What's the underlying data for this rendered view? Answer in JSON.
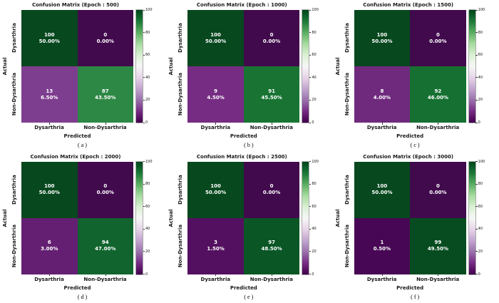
{
  "figure": {
    "background": "#ffffff",
    "colormap": "PRGn",
    "axis": {
      "xlabel": "Predicted",
      "ylabel": "Actual",
      "x_categories": [
        "Dysarthria",
        "Non-Dysarthria"
      ],
      "y_categories": [
        "Dysarthria",
        "Non-Dysarthria"
      ]
    },
    "colorbar": {
      "min": 0,
      "max": 100,
      "ticks": [
        "100",
        "80",
        "60",
        "40",
        "20",
        "0"
      ],
      "color_top": "#00441b",
      "color_mid": "#f7f7f7",
      "color_bottom": "#40004b"
    }
  },
  "subplots": [
    {
      "title": "Confusion Matrix (Epoch : 500)",
      "letter": "(a)",
      "cells": [
        {
          "count": "100",
          "pct": "50.00%",
          "color": "#07481e"
        },
        {
          "count": "0",
          "pct": "0.00%",
          "color": "#400a4c"
        },
        {
          "count": "13",
          "pct": "6.50%",
          "color": "#7e3e8f"
        },
        {
          "count": "87",
          "pct": "43.50%",
          "color": "#2e8845"
        }
      ]
    },
    {
      "title": "Confusion Matrix (Epoch : 1000)",
      "letter": "(b)",
      "cells": [
        {
          "count": "100",
          "pct": "50.00%",
          "color": "#07481e"
        },
        {
          "count": "0",
          "pct": "0.00%",
          "color": "#400a4c"
        },
        {
          "count": "9",
          "pct": "4.50%",
          "color": "#752c82"
        },
        {
          "count": "91",
          "pct": "45.50%",
          "color": "#197434"
        }
      ]
    },
    {
      "title": "Confusion Matrix (Epoch : 1500)",
      "letter": "(c)",
      "cells": [
        {
          "count": "100",
          "pct": "50.00%",
          "color": "#07481e"
        },
        {
          "count": "0",
          "pct": "0.00%",
          "color": "#400a4c"
        },
        {
          "count": "8",
          "pct": "4.00%",
          "color": "#6f2a7e"
        },
        {
          "count": "92",
          "pct": "46.00%",
          "color": "#167031"
        }
      ]
    },
    {
      "title": "Confusion Matrix (Epoch : 2000)",
      "letter": "(d)",
      "cells": [
        {
          "count": "100",
          "pct": "50.00%",
          "color": "#07481e"
        },
        {
          "count": "0",
          "pct": "0.00%",
          "color": "#400a4c"
        },
        {
          "count": "6",
          "pct": "3.00%",
          "color": "#641f72"
        },
        {
          "count": "94",
          "pct": "47.00%",
          "color": "#11642d"
        }
      ]
    },
    {
      "title": "Confusion Matrix (Epoch : 2500)",
      "letter": "(e)",
      "cells": [
        {
          "count": "100",
          "pct": "50.00%",
          "color": "#07481e"
        },
        {
          "count": "0",
          "pct": "0.00%",
          "color": "#400a4c"
        },
        {
          "count": "3",
          "pct": "1.50%",
          "color": "#541060"
        },
        {
          "count": "97",
          "pct": "48.50%",
          "color": "#0a5625"
        }
      ]
    },
    {
      "title": "Confusion Matrix (Epoch : 3000)",
      "letter": "(f)",
      "cells": [
        {
          "count": "100",
          "pct": "50.00%",
          "color": "#07481e"
        },
        {
          "count": "0",
          "pct": "0.00%",
          "color": "#400a4c"
        },
        {
          "count": "1",
          "pct": "0.50%",
          "color": "#470754"
        },
        {
          "count": "99",
          "pct": "49.50%",
          "color": "#064c20"
        }
      ]
    }
  ],
  "chart_data": [
    {
      "type": "heatmap",
      "title": "Confusion Matrix (Epoch : 500)",
      "panel": "(a)",
      "xlabel": "Predicted",
      "ylabel": "Actual",
      "x_categories": [
        "Dysarthria",
        "Non-Dysarthria"
      ],
      "y_categories": [
        "Dysarthria",
        "Non-Dysarthria"
      ],
      "values": [
        [
          100,
          0
        ],
        [
          13,
          87
        ]
      ],
      "percent_labels": [
        [
          "50.00%",
          "0.00%"
        ],
        [
          "6.50%",
          "43.50%"
        ]
      ],
      "colormap": "PRGn",
      "colorbar_range": [
        0,
        100
      ],
      "colorbar_ticks": [
        0,
        20,
        40,
        60,
        80,
        100
      ]
    },
    {
      "type": "heatmap",
      "title": "Confusion Matrix (Epoch : 1000)",
      "panel": "(b)",
      "xlabel": "Predicted",
      "ylabel": "Actual",
      "x_categories": [
        "Dysarthria",
        "Non-Dysarthria"
      ],
      "y_categories": [
        "Dysarthria",
        "Non-Dysarthria"
      ],
      "values": [
        [
          100,
          0
        ],
        [
          9,
          91
        ]
      ],
      "percent_labels": [
        [
          "50.00%",
          "0.00%"
        ],
        [
          "4.50%",
          "45.50%"
        ]
      ],
      "colormap": "PRGn",
      "colorbar_range": [
        0,
        100
      ],
      "colorbar_ticks": [
        0,
        20,
        40,
        60,
        80,
        100
      ]
    },
    {
      "type": "heatmap",
      "title": "Confusion Matrix (Epoch : 1500)",
      "panel": "(c)",
      "xlabel": "Predicted",
      "ylabel": "Actual",
      "x_categories": [
        "Dysarthria",
        "Non-Dysarthria"
      ],
      "y_categories": [
        "Dysarthria",
        "Non-Dysarthria"
      ],
      "values": [
        [
          100,
          0
        ],
        [
          8,
          92
        ]
      ],
      "percent_labels": [
        [
          "50.00%",
          "0.00%"
        ],
        [
          "4.00%",
          "46.00%"
        ]
      ],
      "colormap": "PRGn",
      "colorbar_range": [
        0,
        100
      ],
      "colorbar_ticks": [
        0,
        20,
        40,
        60,
        80,
        100
      ]
    },
    {
      "type": "heatmap",
      "title": "Confusion Matrix (Epoch : 2000)",
      "panel": "(d)",
      "xlabel": "Predicted",
      "ylabel": "Actual",
      "x_categories": [
        "Dysarthria",
        "Non-Dysarthria"
      ],
      "y_categories": [
        "Dysarthria",
        "Non-Dysarthria"
      ],
      "values": [
        [
          100,
          0
        ],
        [
          6,
          94
        ]
      ],
      "percent_labels": [
        [
          "50.00%",
          "0.00%"
        ],
        [
          "3.00%",
          "47.00%"
        ]
      ],
      "colormap": "PRGn",
      "colorbar_range": [
        0,
        100
      ],
      "colorbar_ticks": [
        0,
        20,
        40,
        60,
        80,
        100
      ]
    },
    {
      "type": "heatmap",
      "title": "Confusion Matrix (Epoch : 2500)",
      "panel": "(e)",
      "xlabel": "Predicted",
      "ylabel": "Actual",
      "x_categories": [
        "Dysarthria",
        "Non-Dysarthria"
      ],
      "y_categories": [
        "Dysarthria",
        "Non-Dysarthria"
      ],
      "values": [
        [
          100,
          0
        ],
        [
          3,
          97
        ]
      ],
      "percent_labels": [
        [
          "50.00%",
          "0.00%"
        ],
        [
          "1.50%",
          "48.50%"
        ]
      ],
      "colormap": "PRGn",
      "colorbar_range": [
        0,
        100
      ],
      "colorbar_ticks": [
        0,
        20,
        40,
        60,
        80,
        100
      ]
    },
    {
      "type": "heatmap",
      "title": "Confusion Matrix (Epoch : 3000)",
      "panel": "(f)",
      "xlabel": "Predicted",
      "ylabel": "Actual",
      "x_categories": [
        "Dysarthria",
        "Non-Dysarthria"
      ],
      "y_categories": [
        "Dysarthria",
        "Non-Dysarthria"
      ],
      "values": [
        [
          100,
          0
        ],
        [
          1,
          99
        ]
      ],
      "percent_labels": [
        [
          "50.00%",
          "0.00%"
        ],
        [
          "0.50%",
          "49.50%"
        ]
      ],
      "colormap": "PRGn",
      "colorbar_range": [
        0,
        100
      ],
      "colorbar_ticks": [
        0,
        20,
        40,
        60,
        80,
        100
      ]
    }
  ]
}
